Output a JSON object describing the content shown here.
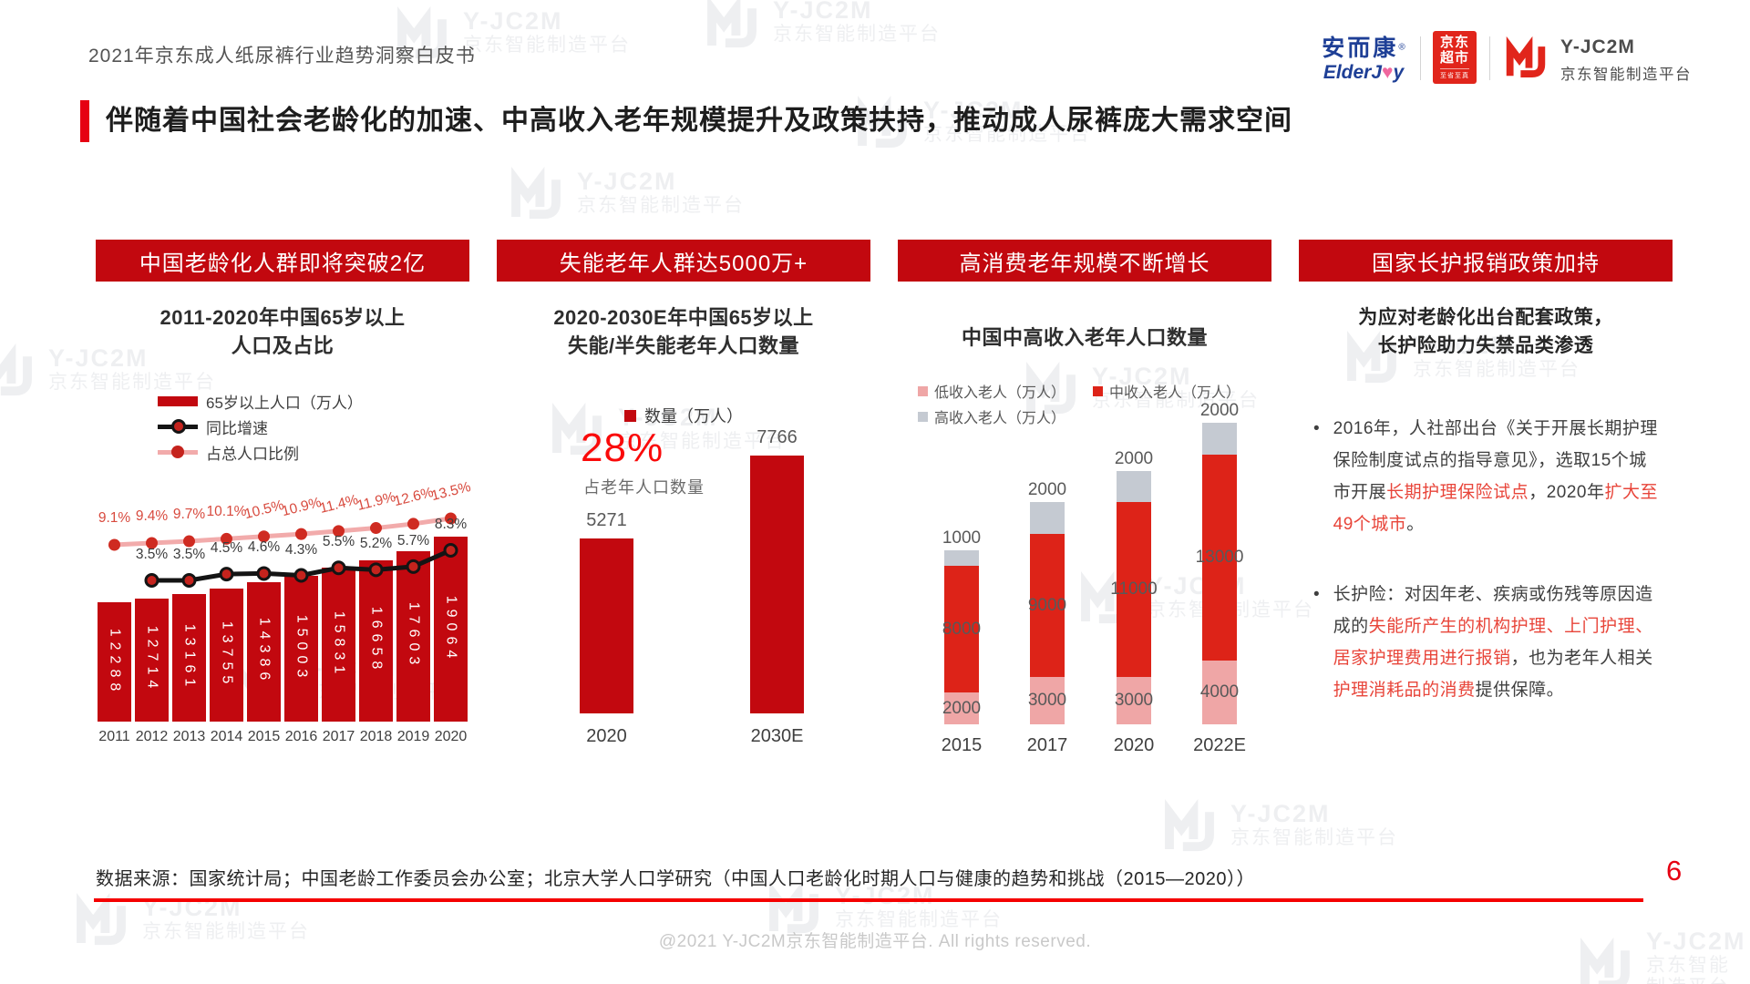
{
  "header": {
    "doc_title": "2021年京东成人纸尿裤行业趋势洞察白皮书",
    "logos": {
      "elderjoy_cn": "安而康",
      "elderjoy_reg": "®",
      "elderjoy_en_pre": "ElderJ",
      "elderjoy_en_post": "y",
      "jd_market_line1": "京东",
      "jd_market_line2": "超市",
      "jd_market_tagline": "至省至真",
      "yjc2m_name": "Y-JC2M",
      "yjc2m_sub": "京东智能制造平台"
    }
  },
  "title": "伴随着中国社会老龄化的加速、中高收入老年规模提升及政策扶持，推动成人尿裤庞大需求空间",
  "columns": [
    {
      "banner": "中国老龄化人群即将突破2亿"
    },
    {
      "banner": "失能老年人群达5000万+"
    },
    {
      "banner": "高消费老年规模不断增长"
    },
    {
      "banner": "国家长护报销政策加持"
    }
  ],
  "chart_data": [
    {
      "type": "bar",
      "title_lines": [
        "2011-2020年中国65岁以上",
        "人口及占比"
      ],
      "categories": [
        "2011",
        "2012",
        "2013",
        "2014",
        "2015",
        "2016",
        "2017",
        "2018",
        "2019",
        "2020"
      ],
      "series": [
        {
          "name": "65岁以上人口（万人）",
          "type": "bar",
          "color": "#c2080f",
          "values": [
            12288,
            12714,
            13161,
            13755,
            14386,
            15003,
            15831,
            16658,
            17603,
            19064
          ]
        },
        {
          "name": "同比增速",
          "type": "line",
          "color": "#141414",
          "unit": "%",
          "values": [
            null,
            3.5,
            3.5,
            4.5,
            4.6,
            4.3,
            5.5,
            5.2,
            5.7,
            8.3
          ]
        },
        {
          "name": "占总人口比例",
          "type": "line",
          "color": "#f2abab",
          "unit": "%",
          "values": [
            9.1,
            9.4,
            9.7,
            10.1,
            10.5,
            10.9,
            11.4,
            11.9,
            12.6,
            13.5
          ]
        }
      ],
      "legend_position": "top",
      "grid": false
    },
    {
      "type": "bar",
      "title_lines": [
        "2020-2030E年中国65岁以上",
        "失能/半失能老年人口数量"
      ],
      "legend": "数量（万人）",
      "categories": [
        "2020",
        "2030E"
      ],
      "values": [
        5271,
        7766
      ],
      "bar_color": "#c2080f",
      "annotation": {
        "big": "28%",
        "sub": "占老年人口数量"
      },
      "grid": false
    },
    {
      "type": "stacked-bar",
      "title": "中国中高收入老年人口数量",
      "categories": [
        "2015",
        "2017",
        "2020",
        "2022E"
      ],
      "series": [
        {
          "name": "低收入老人（万人）",
          "color": "#efa6a6",
          "values": [
            2000,
            3000,
            3000,
            4000
          ]
        },
        {
          "name": "中收入老人（万人）",
          "color": "#dd2318",
          "values": [
            8000,
            9000,
            11000,
            13000
          ]
        },
        {
          "name": "高收入老人（万人）",
          "color": "#c5cad2",
          "values": [
            1000,
            2000,
            2000,
            2000
          ]
        }
      ],
      "legend_position": "top",
      "grid": false
    }
  ],
  "policy": {
    "subtitle_lines": [
      "为应对老龄化出台配套政策，",
      "长护险助力失禁品类渗透"
    ],
    "bullet_marker": "•",
    "bullets": [
      [
        {
          "t": "2016年，人社部出台《关于开展长期护理保险制度试点的指导意见》，选取15个城市开展"
        },
        {
          "t": "长期护理保险试点",
          "red": true
        },
        {
          "t": "，2020年"
        },
        {
          "t": "扩大至49个城市",
          "red": true
        },
        {
          "t": "。"
        }
      ],
      [
        {
          "t": "长护险：对因年老、疾病或伤残等原因造成的"
        },
        {
          "t": "失能所产生的机构护理、上门护理、居家护理费用进行报销",
          "red": true
        },
        {
          "t": "，也为老年人相关"
        },
        {
          "t": "护理消耗品的消费",
          "red": true
        },
        {
          "t": "提供保障。"
        }
      ]
    ]
  },
  "footer": {
    "source": "数据来源：国家统计局；中国老龄工作委员会办公室；北京大学人口学研究（中国人口老龄化时期人口与健康的趋势和挑战（2015—2020））",
    "page": "6",
    "copyright": "@2021 Y-JC2M京东智能制造平台. All rights reserved."
  },
  "watermark": {
    "line1": "Y-JC2M",
    "line2": "京东智能制造平台"
  },
  "colors": {
    "banner_red": "#c2080f",
    "accent_red": "#e60012",
    "bright_red_text": "#fa0a0a",
    "highlight_red": "#e8453a",
    "stacked_low_pink": "#efa6a6",
    "stacked_mid_red": "#dd2318",
    "stacked_high_gray": "#c5cad2"
  }
}
